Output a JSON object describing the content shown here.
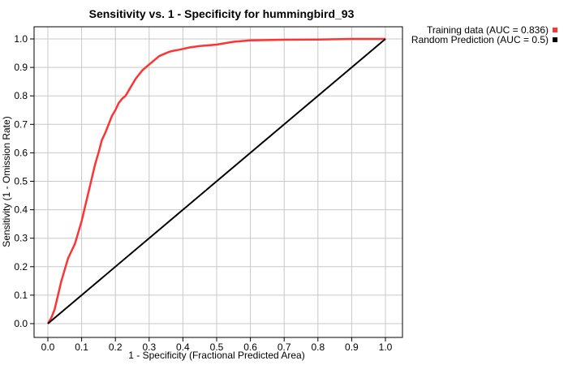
{
  "chart_data": {
    "type": "line",
    "title": "Sensitivity vs. 1 - Specificity for hummingbird_93",
    "xlabel": "1 - Specificity  (Fractional Predicted Area)",
    "ylabel": "Sensitivity  (1 - Omission Rate)",
    "xlim": [
      0.0,
      1.0
    ],
    "ylim": [
      0.0,
      1.0
    ],
    "x_ticks": [
      "0.0",
      "0.1",
      "0.2",
      "0.3",
      "0.4",
      "0.5",
      "0.6",
      "0.7",
      "0.8",
      "0.9",
      "1.0"
    ],
    "y_ticks": [
      "0.0",
      "0.1",
      "0.2",
      "0.3",
      "0.4",
      "0.5",
      "0.6",
      "0.7",
      "0.8",
      "0.9",
      "1.0"
    ],
    "grid": true,
    "legend_position": "top-right-outside",
    "series": [
      {
        "name": "Training data (AUC = 0.836)",
        "color": "#ff3333",
        "x": [
          0.0,
          0.01,
          0.02,
          0.03,
          0.04,
          0.05,
          0.06,
          0.07,
          0.08,
          0.09,
          0.1,
          0.11,
          0.12,
          0.13,
          0.14,
          0.15,
          0.16,
          0.17,
          0.18,
          0.19,
          0.2,
          0.21,
          0.22,
          0.23,
          0.24,
          0.25,
          0.26,
          0.27,
          0.28,
          0.29,
          0.3,
          0.31,
          0.32,
          0.33,
          0.34,
          0.35,
          0.36,
          0.37,
          0.38,
          0.4,
          0.42,
          0.45,
          0.5,
          0.55,
          0.6,
          0.65,
          0.7,
          0.8,
          0.9,
          1.0
        ],
        "y": [
          0.0,
          0.02,
          0.05,
          0.1,
          0.15,
          0.19,
          0.23,
          0.255,
          0.28,
          0.32,
          0.36,
          0.41,
          0.46,
          0.51,
          0.56,
          0.6,
          0.645,
          0.67,
          0.7,
          0.73,
          0.75,
          0.775,
          0.79,
          0.8,
          0.82,
          0.84,
          0.86,
          0.875,
          0.89,
          0.9,
          0.91,
          0.92,
          0.93,
          0.94,
          0.945,
          0.95,
          0.955,
          0.958,
          0.96,
          0.965,
          0.97,
          0.975,
          0.98,
          0.99,
          0.995,
          0.996,
          0.997,
          0.998,
          1.0,
          1.0
        ]
      },
      {
        "name": "Random Prediction (AUC = 0.5)",
        "color": "#000000",
        "x": [
          0.0,
          1.0
        ],
        "y": [
          0.0,
          1.0
        ]
      }
    ]
  }
}
